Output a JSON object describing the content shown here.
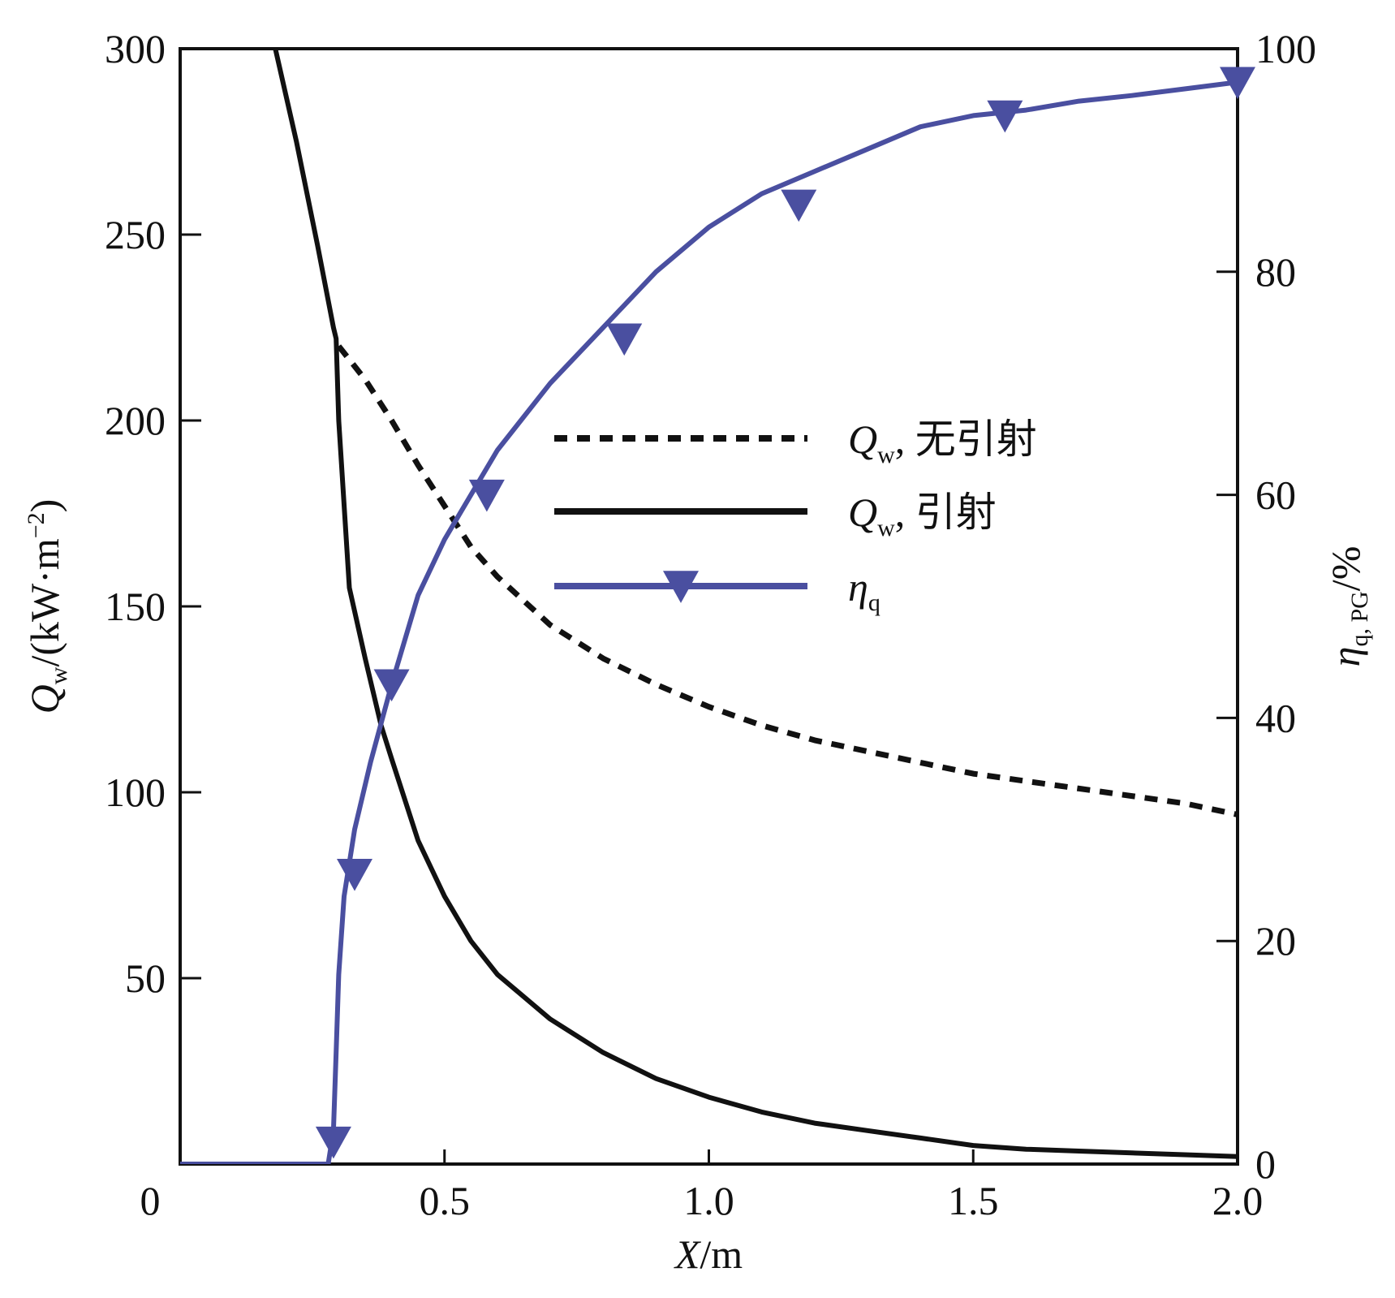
{
  "chart_data": {
    "type": "line",
    "x_axis": {
      "label_main": "X",
      "label_unit": "/m",
      "range": [
        0,
        2.0
      ],
      "ticks": [
        0.5,
        1.0,
        1.5,
        2.0
      ],
      "tick_labels": [
        "0.5",
        "1.0",
        "1.5",
        "2.0"
      ],
      "origin_label": "0"
    },
    "y_left_axis": {
      "label_main": "Q",
      "label_sub": "w",
      "label_unit_pre": "/(kW·m",
      "label_sup": "−2",
      "label_unit_post": ")",
      "range": [
        0,
        300
      ],
      "ticks": [
        50,
        100,
        150,
        200,
        250,
        300
      ],
      "tick_labels": [
        "50",
        "100",
        "150",
        "200",
        "250",
        "300"
      ]
    },
    "y_right_axis": {
      "label_main": "η",
      "label_sub": "q, PG",
      "label_unit": "/%",
      "range": [
        0,
        100
      ],
      "ticks": [
        0,
        20,
        40,
        60,
        80,
        100
      ],
      "tick_labels": [
        "0",
        "20",
        "40",
        "60",
        "80",
        "100"
      ]
    },
    "series": [
      {
        "name_main": "Q",
        "name_sub": "w",
        "name_suffix": ", 无引射",
        "axis": "left",
        "style": "dashed",
        "color": "#111111",
        "x": [
          0.3,
          0.35,
          0.4,
          0.45,
          0.5,
          0.55,
          0.6,
          0.7,
          0.8,
          0.9,
          1.0,
          1.1,
          1.2,
          1.3,
          1.4,
          1.5,
          1.6,
          1.7,
          1.8,
          1.9,
          2.0
        ],
        "y": [
          220,
          211,
          200,
          188,
          177,
          166,
          158,
          145,
          136,
          129,
          123,
          118,
          114,
          111,
          108,
          105,
          103,
          101,
          99,
          97,
          94
        ]
      },
      {
        "name_main": "Q",
        "name_sub": "w",
        "name_suffix": ", 引射",
        "axis": "left",
        "style": "solid",
        "color": "#111111",
        "x": [
          0.18,
          0.22,
          0.26,
          0.29,
          0.295,
          0.3,
          0.32,
          0.35,
          0.38,
          0.4,
          0.45,
          0.5,
          0.55,
          0.6,
          0.7,
          0.8,
          0.9,
          1.0,
          1.1,
          1.2,
          1.3,
          1.4,
          1.5,
          1.6,
          1.7,
          1.8,
          1.9,
          2.0
        ],
        "y": [
          300,
          275,
          247,
          225,
          222,
          200,
          155,
          136,
          118,
          109,
          87,
          72,
          60,
          51,
          39,
          30,
          23,
          18,
          14,
          11,
          9,
          7,
          5,
          4,
          3.5,
          3,
          2.5,
          2
        ]
      },
      {
        "name_main": "η",
        "name_sub": "q",
        "name_suffix": "",
        "axis": "right",
        "style": "solid-triangle-markers",
        "color": "#4a4fa0",
        "x": [
          0.0,
          0.1,
          0.2,
          0.28,
          0.29,
          0.295,
          0.3,
          0.31,
          0.33,
          0.36,
          0.4,
          0.45,
          0.5,
          0.55,
          0.6,
          0.7,
          0.8,
          0.9,
          1.0,
          1.1,
          1.2,
          1.3,
          1.4,
          1.5,
          1.6,
          1.7,
          1.8,
          1.9,
          2.0
        ],
        "y": [
          0,
          0,
          0,
          0,
          3,
          10,
          17,
          24,
          30,
          36,
          43,
          51,
          56,
          60,
          64,
          70,
          75,
          80,
          84,
          87,
          89,
          91,
          93,
          94,
          94.5,
          95.3,
          95.8,
          96.4,
          97
        ],
        "markers_x": [
          0.29,
          0.33,
          0.4,
          0.58,
          0.84,
          1.17,
          1.56,
          2.0
        ],
        "markers_y": [
          2,
          26,
          43,
          60,
          74,
          86,
          94,
          97
        ]
      }
    ],
    "legend": {
      "placement": "center-right"
    },
    "grid": false
  }
}
